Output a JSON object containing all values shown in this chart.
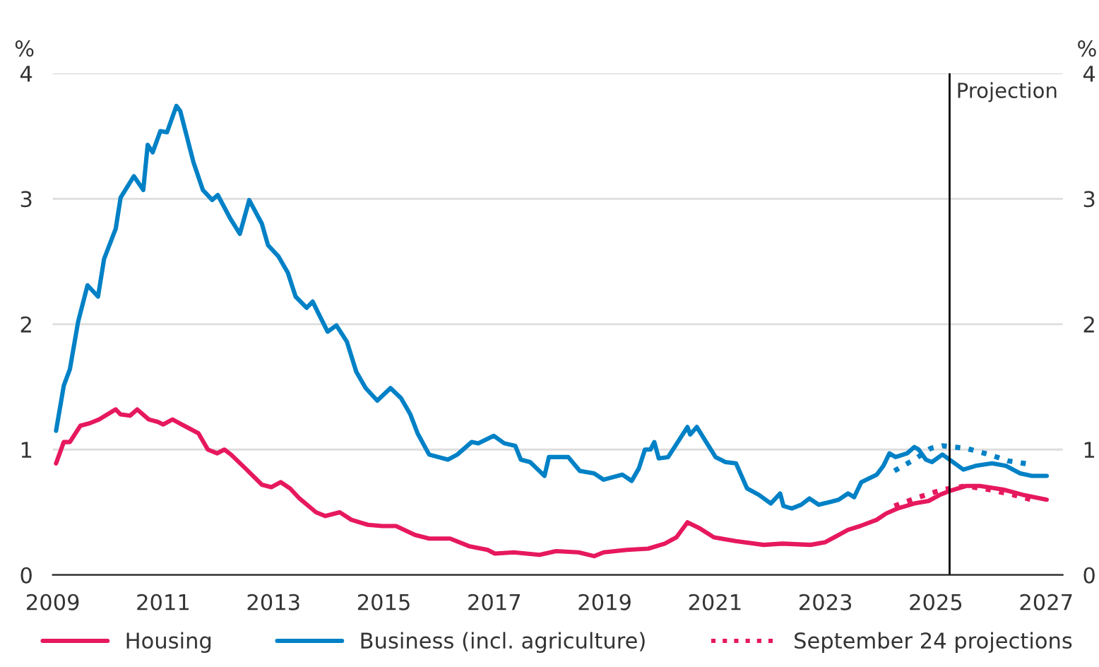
{
  "chart_data": {
    "type": "line",
    "ylabel": "%",
    "y2label": "%",
    "xlim": [
      2009,
      2027.3
    ],
    "xticks": [
      2009,
      2011,
      2013,
      2015,
      2017,
      2019,
      2021,
      2023,
      2025,
      2027
    ],
    "ylim": [
      0,
      4
    ],
    "yticks": [
      0,
      1,
      2,
      3,
      4
    ],
    "y2lim": [
      0,
      4
    ],
    "y2ticks": [
      0,
      1,
      2,
      3,
      4
    ],
    "grid": "y",
    "legend": "bottom",
    "line_style": "solid",
    "ref_lines": [
      {
        "axis": "x",
        "value": 2025.25,
        "label": "Projection",
        "color": "#000000"
      }
    ],
    "series": [
      {
        "name": "Housing",
        "color": "#e6185e",
        "x": [
          2009.06,
          2009.2,
          2009.31,
          2009.5,
          2009.67,
          2009.84,
          2010.14,
          2010.23,
          2010.4,
          2010.53,
          2010.74,
          2010.91,
          2011.0,
          2011.17,
          2011.38,
          2011.64,
          2011.81,
          2011.98,
          2012.11,
          2012.23,
          2012.49,
          2012.79,
          2012.96,
          2013.13,
          2013.3,
          2013.47,
          2013.77,
          2013.94,
          2014.2,
          2014.41,
          2014.71,
          2014.97,
          2015.22,
          2015.56,
          2015.82,
          2016.2,
          2016.54,
          2016.88,
          2017.01,
          2017.35,
          2017.82,
          2018.12,
          2018.53,
          2018.81,
          2018.98,
          2019.4,
          2019.79,
          2020.09,
          2020.3,
          2020.5,
          2020.73,
          2020.98,
          2021.37,
          2021.88,
          2022.22,
          2022.73,
          2022.99,
          2023.16,
          2023.41,
          2023.63,
          2023.93,
          2024.1,
          2024.31,
          2024.61,
          2024.87,
          2025.08,
          2025.25,
          2025.55,
          2025.8,
          2026.23,
          2026.57,
          2027.01
        ],
        "values": [
          0.89,
          1.06,
          1.06,
          1.19,
          1.21,
          1.24,
          1.32,
          1.28,
          1.27,
          1.32,
          1.24,
          1.22,
          1.2,
          1.24,
          1.19,
          1.13,
          1.0,
          0.97,
          1.0,
          0.96,
          0.85,
          0.72,
          0.7,
          0.74,
          0.69,
          0.61,
          0.5,
          0.47,
          0.5,
          0.44,
          0.4,
          0.39,
          0.39,
          0.32,
          0.29,
          0.29,
          0.23,
          0.2,
          0.17,
          0.18,
          0.16,
          0.19,
          0.18,
          0.15,
          0.18,
          0.2,
          0.21,
          0.25,
          0.3,
          0.42,
          0.37,
          0.3,
          0.27,
          0.24,
          0.25,
          0.24,
          0.26,
          0.3,
          0.36,
          0.39,
          0.44,
          0.49,
          0.53,
          0.57,
          0.59,
          0.64,
          0.67,
          0.71,
          0.71,
          0.68,
          0.64,
          0.6
        ]
      },
      {
        "name": "Business (incl. agriculture)",
        "color": "#0081c6",
        "x": [
          2009.06,
          2009.2,
          2009.31,
          2009.46,
          2009.63,
          2009.82,
          2009.93,
          2010.14,
          2010.23,
          2010.47,
          2010.64,
          2010.72,
          2010.81,
          2010.95,
          2011.07,
          2011.24,
          2011.31,
          2011.55,
          2011.72,
          2011.89,
          2011.99,
          2012.22,
          2012.39,
          2012.56,
          2012.79,
          2012.9,
          2013.09,
          2013.26,
          2013.4,
          2013.6,
          2013.71,
          2013.81,
          2013.98,
          2014.14,
          2014.33,
          2014.5,
          2014.67,
          2014.88,
          2015.12,
          2015.31,
          2015.48,
          2015.61,
          2015.82,
          2016.16,
          2016.33,
          2016.59,
          2016.71,
          2016.99,
          2017.18,
          2017.38,
          2017.48,
          2017.65,
          2017.91,
          2017.99,
          2018.34,
          2018.55,
          2018.81,
          2018.98,
          2019.32,
          2019.49,
          2019.62,
          2019.73,
          2019.83,
          2019.9,
          2019.98,
          2020.15,
          2020.5,
          2020.55,
          2020.67,
          2021.01,
          2021.19,
          2021.38,
          2021.58,
          2021.79,
          2022.01,
          2022.18,
          2022.24,
          2022.39,
          2022.56,
          2022.71,
          2022.88,
          2023.07,
          2023.24,
          2023.41,
          2023.52,
          2023.65,
          2023.93,
          2024.05,
          2024.16,
          2024.27,
          2024.48,
          2024.61,
          2024.69,
          2024.82,
          2024.93,
          2025.12,
          2025.25,
          2025.5,
          2025.72,
          2026.02,
          2026.27,
          2026.53,
          2026.74,
          2027.01
        ],
        "values": [
          1.15,
          1.51,
          1.64,
          2.02,
          2.31,
          2.22,
          2.52,
          2.76,
          3.01,
          3.18,
          3.07,
          3.43,
          3.37,
          3.54,
          3.53,
          3.74,
          3.7,
          3.29,
          3.07,
          2.99,
          3.03,
          2.84,
          2.72,
          2.99,
          2.8,
          2.63,
          2.54,
          2.41,
          2.22,
          2.13,
          2.18,
          2.09,
          1.94,
          1.99,
          1.86,
          1.62,
          1.49,
          1.39,
          1.49,
          1.41,
          1.28,
          1.13,
          0.96,
          0.92,
          0.96,
          1.06,
          1.05,
          1.11,
          1.05,
          1.03,
          0.92,
          0.9,
          0.79,
          0.94,
          0.94,
          0.83,
          0.81,
          0.76,
          0.8,
          0.75,
          0.85,
          1.0,
          1.0,
          1.06,
          0.93,
          0.94,
          1.18,
          1.12,
          1.18,
          0.94,
          0.9,
          0.89,
          0.69,
          0.64,
          0.57,
          0.65,
          0.55,
          0.53,
          0.56,
          0.61,
          0.56,
          0.58,
          0.6,
          0.65,
          0.62,
          0.74,
          0.8,
          0.87,
          0.97,
          0.94,
          0.97,
          1.02,
          1.0,
          0.92,
          0.9,
          0.96,
          0.92,
          0.84,
          0.87,
          0.89,
          0.87,
          0.81,
          0.79,
          0.79
        ]
      },
      {
        "name": "September 24 projections",
        "color": "#e6185e",
        "line_style": "dotted",
        "x": [
          2024.25,
          2024.69,
          2025.12,
          2025.55,
          2025.97,
          2026.4,
          2026.74
        ],
        "values": [
          0.55,
          0.62,
          0.68,
          0.71,
          0.68,
          0.64,
          0.6
        ]
      },
      {
        "color": "#0081c6",
        "line_style": "dotted",
        "x": [
          2024.25,
          2024.61,
          2024.91,
          2025.12,
          2025.55,
          2025.97,
          2026.31,
          2026.74
        ],
        "values": [
          0.83,
          0.92,
          1.01,
          1.03,
          1.01,
          0.96,
          0.91,
          0.88
        ]
      }
    ]
  }
}
